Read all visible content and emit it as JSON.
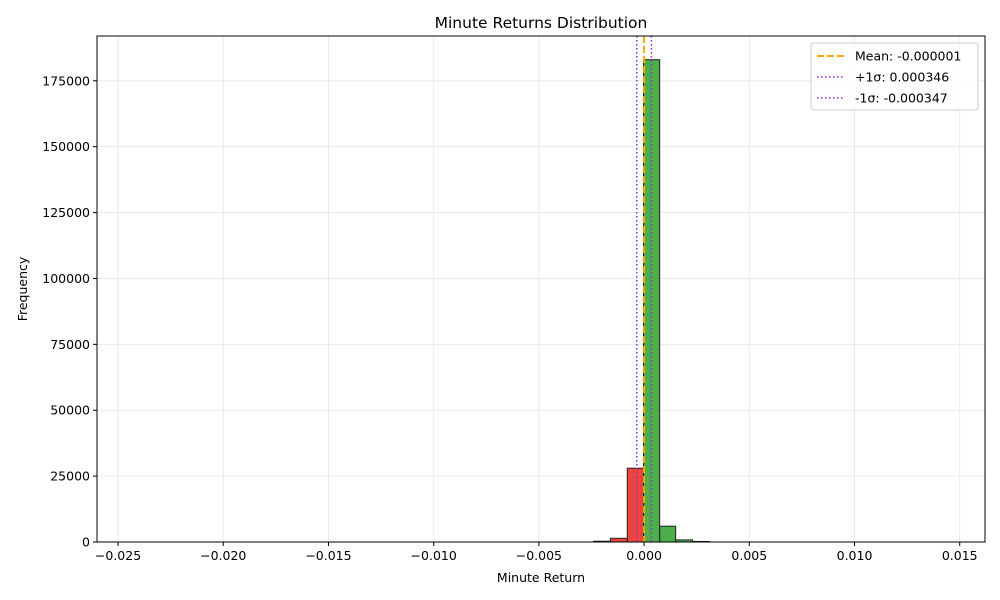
{
  "chart_data": {
    "type": "bar",
    "title": "Minute Returns Distribution",
    "xlabel": "Minute Return",
    "ylabel": "Frequency",
    "xlim": [
      -0.026,
      0.0162
    ],
    "ylim": [
      0,
      192000
    ],
    "xticks": [
      -0.025,
      -0.02,
      -0.015,
      -0.01,
      -0.005,
      0.0,
      0.005,
      0.01,
      0.015
    ],
    "xtick_labels": [
      "−0.025",
      "−0.020",
      "−0.015",
      "−0.010",
      "−0.005",
      "0.000",
      "0.005",
      "0.010",
      "0.015"
    ],
    "yticks": [
      0,
      25000,
      50000,
      75000,
      100000,
      125000,
      150000,
      175000
    ],
    "ytick_labels": [
      "0",
      "25000",
      "50000",
      "75000",
      "100000",
      "125000",
      "150000",
      "175000"
    ],
    "grid": true,
    "legend_position": "top-right",
    "bins": [
      {
        "left": -0.0024,
        "right": -0.0016,
        "count": 300,
        "color": "#e8231f"
      },
      {
        "left": -0.0016,
        "right": -0.0008,
        "count": 1400,
        "color": "#e8231f"
      },
      {
        "left": -0.0008,
        "right": -3e-05,
        "count": 28000,
        "color": "#e8231f"
      },
      {
        "left": -3e-05,
        "right": 0.00074,
        "count": 183000,
        "color": "#2ca02c"
      },
      {
        "left": 0.00074,
        "right": 0.0015,
        "count": 6000,
        "color": "#2ca02c"
      },
      {
        "left": 0.0015,
        "right": 0.0023,
        "count": 800,
        "color": "#2ca02c"
      },
      {
        "left": 0.0023,
        "right": 0.0031,
        "count": 200,
        "color": "#2ca02c"
      }
    ],
    "reference_lines": [
      {
        "name": "Mean: -0.000001",
        "x": -1e-06,
        "style": "dashed",
        "color": "#ffa500"
      },
      {
        "name": "+1σ: 0.000346",
        "x": 0.000346,
        "style": "dotted",
        "color": "#9932cc"
      },
      {
        "name": "-1σ: -0.000347",
        "x": -0.000347,
        "style": "dotted",
        "color": "#9932cc"
      }
    ]
  }
}
